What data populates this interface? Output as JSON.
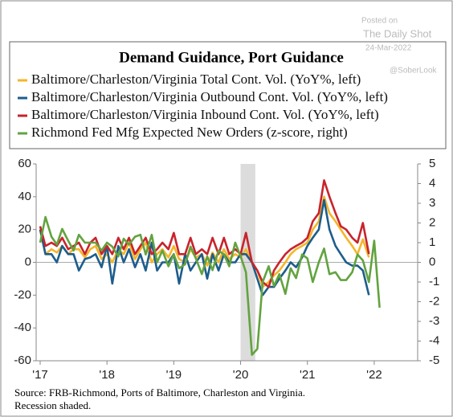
{
  "chart_data": {
    "type": "line",
    "title": "Demand Guidance, Port Guidance",
    "watermark": [
      "Posted on",
      "The Daily Shot",
      "24-Mar-2022",
      "@SoberLook"
    ],
    "source": [
      "Source:  FRB-Richmond, Ports of Baltimore, Charleston and Virginia.",
      "Recession shaded."
    ],
    "x": [
      2017.0,
      2017.08,
      2017.17,
      2017.25,
      2017.33,
      2017.42,
      2017.5,
      2017.58,
      2017.67,
      2017.75,
      2017.83,
      2017.92,
      2018.0,
      2018.08,
      2018.17,
      2018.25,
      2018.33,
      2018.42,
      2018.5,
      2018.58,
      2018.67,
      2018.75,
      2018.83,
      2018.92,
      2019.0,
      2019.08,
      2019.17,
      2019.25,
      2019.33,
      2019.42,
      2019.5,
      2019.58,
      2019.67,
      2019.75,
      2019.83,
      2019.92,
      2020.0,
      2020.08,
      2020.17,
      2020.25,
      2020.33,
      2020.42,
      2020.5,
      2020.58,
      2020.67,
      2020.75,
      2020.83,
      2020.92,
      2021.0,
      2021.08,
      2021.17,
      2021.25,
      2021.33,
      2021.42,
      2021.5,
      2021.58,
      2021.67,
      2021.75,
      2021.83,
      2021.92,
      2022.0,
      2022.08
    ],
    "series": [
      {
        "name": "Baltimore/Charleston/Virginia Total Cont. Vol. (YoY%, left)",
        "color": "#f4b62a",
        "axis": "y",
        "values": [
          20,
          5,
          8,
          6,
          10,
          5,
          8,
          8,
          3,
          8,
          10,
          2,
          5,
          0,
          8,
          5,
          12,
          2,
          8,
          12,
          0,
          5,
          8,
          3,
          10,
          2,
          0,
          8,
          3,
          5,
          -2,
          6,
          0,
          8,
          2,
          5,
          3,
          8,
          0,
          -5,
          -15,
          -12,
          -8,
          -5,
          0,
          5,
          8,
          10,
          12,
          20,
          25,
          40,
          30,
          25,
          20,
          15,
          10,
          5,
          14,
          3,
          null,
          null
        ]
      },
      {
        "name": "Baltimore/Charleston/Virginia Outbound Cont. Vol. (YoY%, left)",
        "color": "#1d5d8c",
        "axis": "y",
        "values": [
          20,
          5,
          5,
          0,
          10,
          5,
          5,
          -5,
          2,
          3,
          5,
          -3,
          10,
          -13,
          10,
          0,
          8,
          -3,
          5,
          -5,
          12,
          -5,
          0,
          0,
          5,
          -13,
          5,
          -5,
          0,
          5,
          -10,
          5,
          -5,
          5,
          0,
          0,
          5,
          5,
          0,
          -10,
          -20,
          -15,
          -15,
          -10,
          -5,
          0,
          -3,
          3,
          10,
          15,
          20,
          38,
          20,
          10,
          5,
          0,
          -2,
          -2,
          -5,
          -20,
          null,
          null
        ]
      },
      {
        "name": "Baltimore/Charleston/Virginia Inbound Cont. Vol. (YoY%, left)",
        "color": "#c8232c",
        "axis": "y",
        "values": [
          22,
          10,
          12,
          10,
          15,
          8,
          10,
          12,
          5,
          12,
          15,
          5,
          10,
          5,
          15,
          8,
          15,
          5,
          10,
          15,
          5,
          8,
          12,
          8,
          18,
          5,
          5,
          15,
          5,
          8,
          5,
          15,
          5,
          15,
          5,
          8,
          5,
          18,
          0,
          -5,
          -12,
          -15,
          -5,
          0,
          5,
          8,
          10,
          12,
          15,
          25,
          30,
          50,
          40,
          30,
          22,
          20,
          15,
          12,
          24,
          5,
          null,
          null
        ]
      },
      {
        "name": "Richmond Fed Mfg Expected New Orders (z-score, right)",
        "color": "#62a33f",
        "axis": "y2",
        "values": [
          1.0,
          2.3,
          1.3,
          0.9,
          1.7,
          1.1,
          0.6,
          1.4,
          1.0,
          1.0,
          1.0,
          0.6,
          1.0,
          0.8,
          0.3,
          1.2,
          0.9,
          1.3,
          1.4,
          0.4,
          1.4,
          0.0,
          0.6,
          -0.2,
          0.4,
          -0.3,
          -0.1,
          0.8,
          0.2,
          -0.6,
          0.3,
          -0.4,
          0.6,
          0.4,
          -0.2,
          1.0,
          0.3,
          -0.5,
          -4.7,
          -4.4,
          -1.0,
          -0.2,
          -1.2,
          -0.6,
          -1.6,
          -0.3,
          -0.8,
          0.4,
          0.2,
          -1.0,
          0.0,
          0.7,
          -0.6,
          -0.5,
          -0.9,
          -0.9,
          -0.5,
          0.4,
          0.1,
          -1.0,
          1.1,
          -2.3
        ]
      }
    ],
    "shaded_regions": [
      [
        2020.0,
        2020.22
      ]
    ],
    "xlim": [
      2016.94,
      2022.65
    ],
    "xticks": [
      {
        "value": 2017,
        "label": "'17"
      },
      {
        "value": 2018,
        "label": "'18"
      },
      {
        "value": 2019,
        "label": "'19"
      },
      {
        "value": 2020,
        "label": "'20"
      },
      {
        "value": 2021,
        "label": "'21"
      },
      {
        "value": 2022,
        "label": "'22"
      }
    ],
    "ylim": [
      -60,
      60
    ],
    "yticks": [
      -60,
      -40,
      -20,
      0,
      20,
      40,
      60
    ],
    "y2lim": [
      -5,
      5
    ],
    "y2ticks": [
      -5,
      -4,
      -3,
      -2,
      -1,
      0,
      1,
      2,
      3,
      4,
      5
    ]
  }
}
